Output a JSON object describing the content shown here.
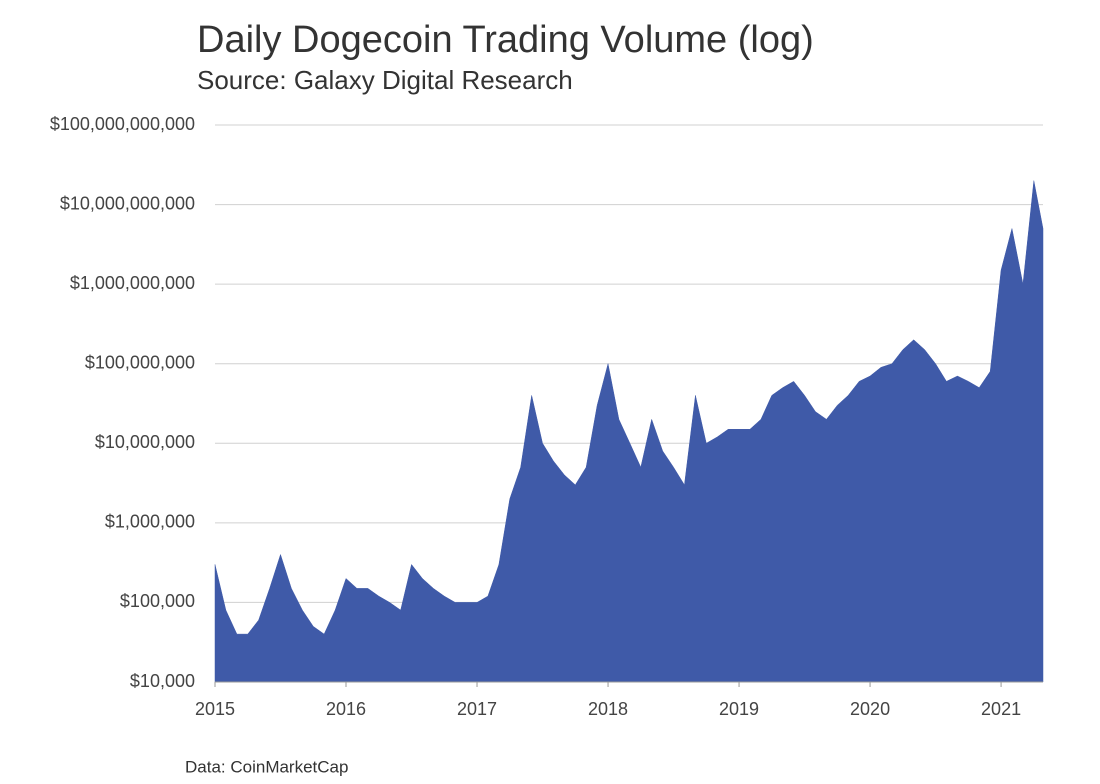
{
  "chart_data": {
    "type": "area",
    "log_scale": true,
    "grid": true,
    "color": "#3f5aa8",
    "title": "Daily Dogecoin Trading Volume (log)",
    "subtitle": "Source: Galaxy Digital Research",
    "note": "Data: CoinMarketCap",
    "xlim": [
      2015,
      2021.32
    ],
    "xticks": [
      2015,
      2016,
      2017,
      2018,
      2019,
      2020,
      2021
    ],
    "ylim": [
      10000,
      100000000000
    ],
    "yticks": [
      {
        "value": 10000,
        "label": "$10,000"
      },
      {
        "value": 100000,
        "label": "$100,000"
      },
      {
        "value": 1000000,
        "label": "$1,000,000"
      },
      {
        "value": 10000000,
        "label": "$10,000,000"
      },
      {
        "value": 100000000,
        "label": "$100,000,000"
      },
      {
        "value": 1000000000,
        "label": "$1,000,000,000"
      },
      {
        "value": 10000000000,
        "label": "$10,000,000,000"
      },
      {
        "value": 100000000000,
        "label": "$100,000,000,000"
      }
    ],
    "x": [
      2015,
      2015.083,
      2015.167,
      2015.25,
      2015.333,
      2015.417,
      2015.5,
      2015.583,
      2015.667,
      2015.75,
      2015.833,
      2015.917,
      2016,
      2016.083,
      2016.167,
      2016.25,
      2016.333,
      2016.417,
      2016.5,
      2016.583,
      2016.667,
      2016.75,
      2016.833,
      2016.917,
      2017,
      2017.083,
      2017.167,
      2017.25,
      2017.333,
      2017.417,
      2017.5,
      2017.583,
      2017.667,
      2017.75,
      2017.833,
      2017.917,
      2018,
      2018.083,
      2018.167,
      2018.25,
      2018.333,
      2018.417,
      2018.5,
      2018.583,
      2018.667,
      2018.75,
      2018.833,
      2018.917,
      2019,
      2019.083,
      2019.167,
      2019.25,
      2019.333,
      2019.417,
      2019.5,
      2019.583,
      2019.667,
      2019.75,
      2019.833,
      2019.917,
      2020,
      2020.083,
      2020.167,
      2020.25,
      2020.333,
      2020.417,
      2020.5,
      2020.583,
      2020.667,
      2020.75,
      2020.833,
      2020.917,
      2021,
      2021.083,
      2021.167,
      2021.25,
      2021.32
    ],
    "values": [
      300000,
      80000,
      40000,
      40000,
      60000,
      150000,
      400000,
      150000,
      80000,
      50000,
      40000,
      80000,
      200000,
      150000,
      150000,
      120000,
      100000,
      80000,
      300000,
      200000,
      150000,
      120000,
      100000,
      100000,
      100000,
      120000,
      300000,
      2000000,
      5000000,
      40000000,
      10000000,
      6000000,
      4000000,
      3000000,
      5000000,
      30000000,
      100000000,
      20000000,
      10000000,
      5000000,
      20000000,
      8000000,
      5000000,
      3000000,
      40000000,
      10000000,
      12000000,
      15000000,
      15000000,
      15000000,
      20000000,
      40000000,
      50000000,
      60000000,
      40000000,
      25000000,
      20000000,
      30000000,
      40000000,
      60000000,
      70000000,
      90000000,
      100000000,
      150000000,
      200000000,
      150000000,
      100000000,
      60000000,
      70000000,
      60000000,
      50000000,
      80000000,
      1500000000,
      5000000000,
      1000000000,
      20000000000,
      5000000000
    ]
  }
}
